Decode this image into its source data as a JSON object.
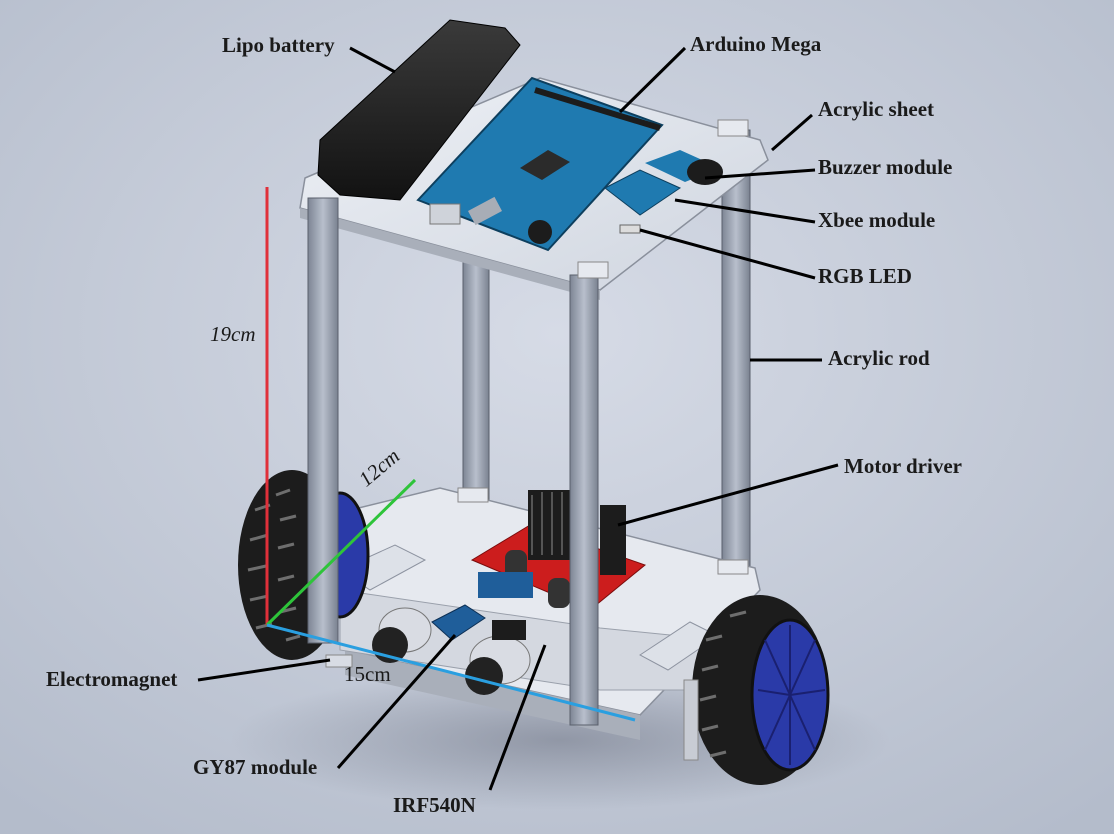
{
  "labels": {
    "lipo_battery": "Lipo battery",
    "arduino_mega": "Arduino Mega",
    "acrylic_sheet": "Acrylic sheet",
    "buzzer_module": "Buzzer module",
    "xbee_module": "Xbee module",
    "rgb_led": "RGB LED",
    "acrylic_rod": "Acrylic rod",
    "motor_driver": "Motor driver",
    "electromagnet": "Electromagnet",
    "gy87_module": "GY87 module",
    "irf540n": "IRF540N"
  },
  "dimensions": {
    "height": "19cm",
    "depth": "12cm",
    "width": "15cm"
  },
  "colors": {
    "background": "#c3c9d6",
    "height_line": "#e0303a",
    "depth_line": "#2ec43a",
    "width_line": "#2a9fe0",
    "arduino_board": "#1f7ab0",
    "motor_driver_pcb": "#cc1d1d",
    "wheel_hub": "#2a3aa8",
    "tire": "#1c1c1c"
  }
}
